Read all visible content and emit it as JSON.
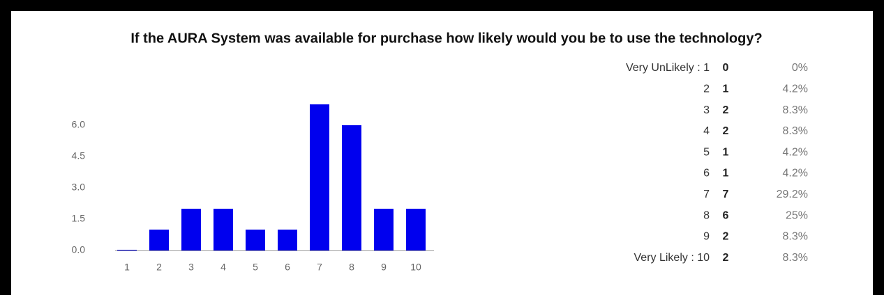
{
  "chart_data": {
    "type": "bar",
    "title": "If the AURA System was available for purchase how likely would you be to use the technology?",
    "categories": [
      "1",
      "2",
      "3",
      "4",
      "5",
      "6",
      "7",
      "8",
      "9",
      "10"
    ],
    "values": [
      0,
      1,
      2,
      2,
      1,
      1,
      7,
      6,
      2,
      2
    ],
    "color": "#0000ee",
    "ylim": [
      0,
      7
    ],
    "yticks": [
      {
        "value": 0,
        "label": "0.0"
      },
      {
        "value": 1.5,
        "label": "1.5"
      },
      {
        "value": 3,
        "label": "3.0"
      },
      {
        "value": 4.5,
        "label": "4.5"
      },
      {
        "value": 6,
        "label": "6.0"
      }
    ],
    "grid": false
  },
  "table": {
    "rows": [
      {
        "label": "Very UnLikely : 1",
        "percent": "0%"
      },
      {
        "label": "2",
        "percent": "4.2%"
      },
      {
        "label": "3",
        "percent": "8.3%"
      },
      {
        "label": "4",
        "percent": "8.3%"
      },
      {
        "label": "5",
        "percent": "4.2%"
      },
      {
        "label": "6",
        "percent": "4.2%"
      },
      {
        "label": "7",
        "percent": "29.2%"
      },
      {
        "label": "8",
        "percent": "25%"
      },
      {
        "label": "9",
        "percent": "8.3%"
      },
      {
        "label": "Very Likely : 10",
        "percent": "8.3%"
      }
    ]
  }
}
